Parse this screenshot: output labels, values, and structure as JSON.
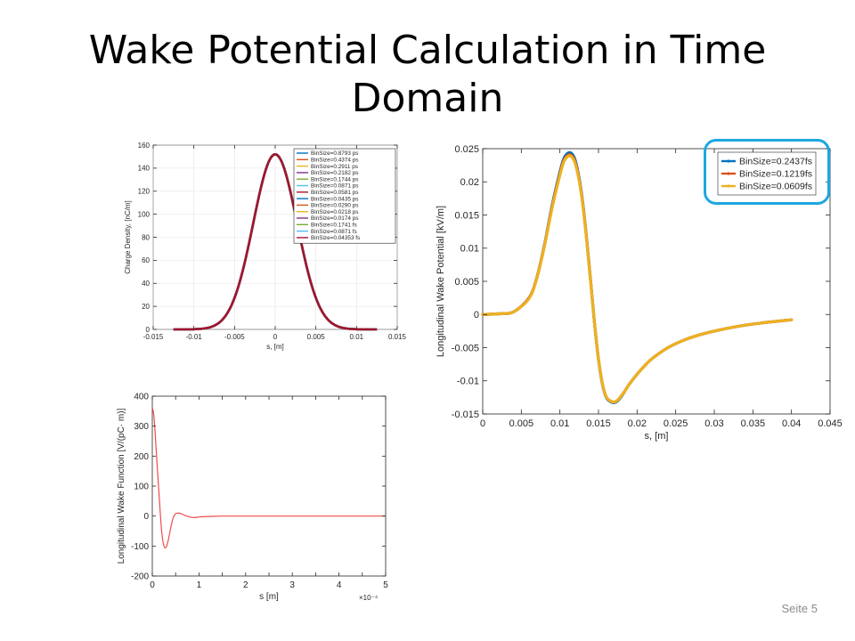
{
  "slide": {
    "title": "Wake Potential Calculation in Time Domain",
    "page_label": "Seite 5",
    "highlight_color": "#1ea7e1"
  },
  "chart_data": [
    {
      "id": "charge",
      "type": "line",
      "xlabel": "s, [m]",
      "ylabel": "Charge Density, [nC/m]",
      "xlim": [
        -0.015,
        0.015
      ],
      "ylim": [
        0,
        160
      ],
      "xticks": [
        -0.015,
        -0.01,
        -0.005,
        0,
        0.005,
        0.01,
        0.015
      ],
      "yticks": [
        0,
        20,
        40,
        60,
        80,
        100,
        120,
        140,
        160
      ],
      "xtick_labels": [
        "-0.015",
        "-0.01",
        "-0.005",
        "0",
        "0.005",
        "0.01",
        "0.015"
      ],
      "ytick_labels": [
        "0",
        "20",
        "40",
        "60",
        "80",
        "100",
        "120",
        "140",
        "160"
      ],
      "grid": true,
      "legend_position": "top-right",
      "curve": {
        "peak": 152,
        "center": 0,
        "sigma": 0.0027,
        "x_start": -0.0125,
        "x_end": 0.0125
      },
      "series": [
        {
          "name": "BinSize=0.8793 ps",
          "color": "#0072bd"
        },
        {
          "name": "BinSize=0.4374 ps",
          "color": "#d95319"
        },
        {
          "name": "BinSize=0.2911 ps",
          "color": "#edb120"
        },
        {
          "name": "BinSize=0.2182 ps",
          "color": "#7e2f8e"
        },
        {
          "name": "BinSize=0.1744 ps",
          "color": "#77ac30"
        },
        {
          "name": "BinSize=0.0871 ps",
          "color": "#4dbeee"
        },
        {
          "name": "BinSize=0.0581 ps",
          "color": "#a2142f"
        },
        {
          "name": "BinSize=0.0435 ps",
          "color": "#0072bd"
        },
        {
          "name": "BinSize=0.0290 ps",
          "color": "#d95319"
        },
        {
          "name": "BinSize=0.0218 ps",
          "color": "#edb120"
        },
        {
          "name": "BinSize=0.0174 ps",
          "color": "#7e2f8e"
        },
        {
          "name": "BinSize=0.1741 fs",
          "color": "#77ac30"
        },
        {
          "name": "BinSize=0.0871 fs",
          "color": "#4dbeee"
        },
        {
          "name": "BinSize=0.04353 fs",
          "color": "#a2142f"
        }
      ]
    },
    {
      "id": "wake-potential",
      "type": "line",
      "xlabel": "s, [m]",
      "ylabel": "Longitudinal Wake Potential [kV/m]",
      "xlim": [
        0,
        0.045
      ],
      "ylim": [
        -0.015,
        0.025
      ],
      "xticks": [
        0,
        0.005,
        0.01,
        0.015,
        0.02,
        0.025,
        0.03,
        0.035,
        0.04,
        0.045
      ],
      "yticks": [
        -0.015,
        -0.01,
        -0.005,
        0,
        0.005,
        0.01,
        0.015,
        0.02,
        0.025
      ],
      "xtick_labels": [
        "0",
        "0.005",
        "0.01",
        "0.015",
        "0.02",
        "0.025",
        "0.03",
        "0.035",
        "0.04",
        "0.045"
      ],
      "ytick_labels": [
        "-0.015",
        "-0.01",
        "-0.005",
        "0",
        "0.005",
        "0.01",
        "0.015",
        "0.02",
        "0.025"
      ],
      "grid": false,
      "legend_position": "top-right",
      "series": [
        {
          "name": "BinSize=0.2437fs",
          "color": "#0072bd",
          "x": [
            0,
            0.002,
            0.004,
            0.006,
            0.007,
            0.008,
            0.009,
            0.01,
            0.0105,
            0.011,
            0.0115,
            0.012,
            0.0125,
            0.013,
            0.0135,
            0.014,
            0.0145,
            0.015,
            0.0155,
            0.016,
            0.0165,
            0.017,
            0.0175,
            0.018,
            0.0185,
            0.019,
            0.02,
            0.021,
            0.022,
            0.024,
            0.026,
            0.028,
            0.03,
            0.033,
            0.036,
            0.04
          ],
          "y": [
            0,
            0.0001,
            0.0004,
            0.0025,
            0.0055,
            0.0105,
            0.0165,
            0.0215,
            0.0235,
            0.0243,
            0.0243,
            0.0232,
            0.0205,
            0.0165,
            0.011,
            0.0048,
            -0.0015,
            -0.0068,
            -0.0105,
            -0.0125,
            -0.0131,
            -0.0133,
            -0.013,
            -0.0123,
            -0.0114,
            -0.0105,
            -0.009,
            -0.0077,
            -0.0066,
            -0.005,
            -0.0039,
            -0.0031,
            -0.0025,
            -0.0018,
            -0.0013,
            -0.0008
          ]
        },
        {
          "name": "BinSize=0.1219fs",
          "color": "#d95319",
          "x": [
            0,
            0.002,
            0.004,
            0.006,
            0.007,
            0.008,
            0.009,
            0.01,
            0.0105,
            0.011,
            0.0115,
            0.012,
            0.0125,
            0.013,
            0.0135,
            0.014,
            0.0145,
            0.015,
            0.0155,
            0.016,
            0.0165,
            0.017,
            0.0175,
            0.018,
            0.0185,
            0.019,
            0.02,
            0.021,
            0.022,
            0.024,
            0.026,
            0.028,
            0.03,
            0.033,
            0.036,
            0.04
          ],
          "y": [
            0,
            0.0001,
            0.0004,
            0.0025,
            0.0055,
            0.0104,
            0.0163,
            0.0212,
            0.0232,
            0.024,
            0.024,
            0.0229,
            0.0203,
            0.0163,
            0.0109,
            0.0048,
            -0.0015,
            -0.0067,
            -0.0104,
            -0.0124,
            -0.013,
            -0.0132,
            -0.0129,
            -0.0122,
            -0.0114,
            -0.0105,
            -0.009,
            -0.0077,
            -0.0066,
            -0.005,
            -0.0039,
            -0.0031,
            -0.0025,
            -0.0018,
            -0.0013,
            -0.0008
          ]
        },
        {
          "name": "BinSize=0.0609fs",
          "color": "#edb120",
          "x": [
            0,
            0.002,
            0.004,
            0.006,
            0.007,
            0.008,
            0.009,
            0.01,
            0.0105,
            0.011,
            0.0115,
            0.012,
            0.0125,
            0.013,
            0.0135,
            0.014,
            0.0145,
            0.015,
            0.0155,
            0.016,
            0.0165,
            0.017,
            0.0175,
            0.018,
            0.0185,
            0.019,
            0.02,
            0.021,
            0.022,
            0.024,
            0.026,
            0.028,
            0.03,
            0.033,
            0.036,
            0.04
          ],
          "y": [
            0,
            0.0001,
            0.0004,
            0.0024,
            0.0054,
            0.0103,
            0.0161,
            0.021,
            0.023,
            0.0238,
            0.0238,
            0.0227,
            0.0201,
            0.0162,
            0.0108,
            0.0047,
            -0.0015,
            -0.0067,
            -0.0104,
            -0.0124,
            -0.013,
            -0.0132,
            -0.0129,
            -0.0122,
            -0.0114,
            -0.0105,
            -0.009,
            -0.0077,
            -0.0066,
            -0.005,
            -0.0039,
            -0.0031,
            -0.0025,
            -0.0018,
            -0.0013,
            -0.0008
          ]
        }
      ]
    },
    {
      "id": "wake-function",
      "type": "line",
      "xlabel": "s [m]",
      "ylabel": "Longitudinal Wake Function [V/(pC· m)]",
      "x_exponent": "×10⁻⁴",
      "xlim": [
        0,
        5
      ],
      "ylim": [
        -200,
        400
      ],
      "xticks": [
        0,
        0.5,
        1,
        1.5,
        2,
        2.5,
        3,
        3.5,
        4,
        4.5,
        5
      ],
      "yticks": [
        -200,
        -100,
        0,
        100,
        200,
        300,
        400
      ],
      "xtick_labels": [
        "0",
        "",
        "1",
        "",
        "2",
        "",
        "3",
        "",
        "4",
        "",
        "5"
      ],
      "ytick_labels": [
        "-200",
        "-100",
        "0",
        "100",
        "200",
        "300",
        "400"
      ],
      "grid": false,
      "series": [
        {
          "color": "#ef4b4b",
          "x": [
            0,
            0.03,
            0.06,
            0.1,
            0.15,
            0.2,
            0.25,
            0.3,
            0.35,
            0.4,
            0.45,
            0.5,
            0.55,
            0.6,
            0.7,
            0.8,
            0.9,
            1.0,
            1.1,
            1.3,
            1.5,
            2,
            3,
            4,
            5
          ],
          "y": [
            362,
            340,
            280,
            180,
            60,
            -50,
            -100,
            -103,
            -75,
            -35,
            -5,
            8,
            10,
            9,
            2,
            -3,
            -5,
            -3,
            -2,
            -1,
            0,
            0,
            0,
            0,
            0
          ]
        }
      ]
    }
  ]
}
